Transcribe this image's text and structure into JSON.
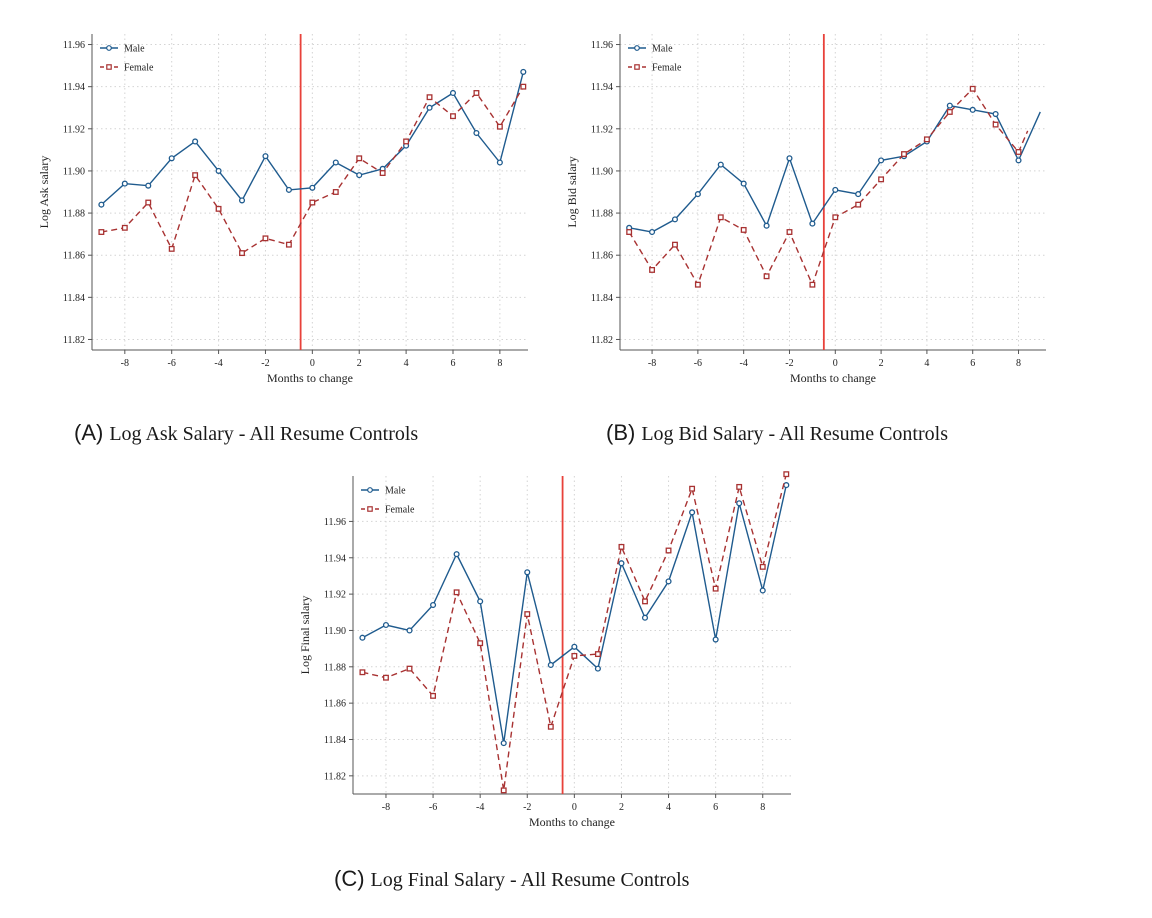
{
  "colors": {
    "male": "#1f5b8e",
    "female": "#a83232",
    "event": "#e8413a",
    "grid": "#d4d4d4",
    "axis": "#555555"
  },
  "chart_data": [
    {
      "type": "line",
      "id": "A",
      "title": "Log Ask Salary - All Resume Controls",
      "panel_label": "(A)",
      "xlabel": "Months to change",
      "ylabel": "Log Ask salary",
      "xlim": [
        -9.4,
        9.2
      ],
      "ylim": [
        11.815,
        11.965
      ],
      "xticks": [
        -8,
        -6,
        -4,
        -2,
        0,
        2,
        4,
        6,
        8
      ],
      "xtick_labels": [
        "-8",
        "-6",
        "-4",
        "-2",
        "0",
        "2",
        "4",
        "6",
        "8"
      ],
      "yticks": [
        11.82,
        11.84,
        11.86,
        11.88,
        11.9,
        11.92,
        11.94,
        11.96
      ],
      "ytick_labels": [
        "11.82",
        "11.84",
        "11.86",
        "11.88",
        "11.90",
        "11.92",
        "11.94",
        "11.96"
      ],
      "event_line_x": -0.5,
      "legend": [
        "Male",
        "Female"
      ],
      "legend_position": "top-left",
      "series": [
        {
          "name": "Male",
          "style": "solid",
          "marker": "circle",
          "x": [
            -9,
            -8,
            -7,
            -6,
            -5,
            -4,
            -3,
            -2,
            -1,
            0,
            1,
            2,
            3,
            4,
            5,
            6,
            7,
            8,
            9
          ],
          "y": [
            11.884,
            11.894,
            11.893,
            11.906,
            11.914,
            11.9,
            11.886,
            11.907,
            11.891,
            11.892,
            11.904,
            11.898,
            11.901,
            11.912,
            11.93,
            11.937,
            11.918,
            11.904,
            11.947
          ]
        },
        {
          "name": "Female",
          "style": "dashed",
          "marker": "square",
          "x": [
            -9,
            -8,
            -7,
            -6,
            -5,
            -4,
            -3,
            -2,
            -1,
            0,
            1,
            2,
            3,
            4,
            5,
            6,
            7,
            8,
            9
          ],
          "y": [
            11.871,
            11.873,
            11.885,
            11.863,
            11.898,
            11.882,
            11.861,
            11.868,
            11.865,
            11.885,
            11.89,
            11.906,
            11.899,
            11.914,
            11.935,
            11.926,
            11.937,
            11.921,
            11.94
          ]
        }
      ]
    },
    {
      "type": "line",
      "id": "B",
      "title": "Log Bid Salary - All Resume Controls",
      "panel_label": "(B)",
      "xlabel": "Months to change",
      "ylabel": "Log Bid salary",
      "xlim": [
        -9.4,
        9.2
      ],
      "ylim": [
        11.815,
        11.965
      ],
      "xticks": [
        -8,
        -6,
        -4,
        -2,
        0,
        2,
        4,
        6,
        8
      ],
      "xtick_labels": [
        "-8",
        "-6",
        "-4",
        "-2",
        "0",
        "2",
        "4",
        "6",
        "8"
      ],
      "yticks": [
        11.82,
        11.84,
        11.86,
        11.88,
        11.9,
        11.92,
        11.94,
        11.96
      ],
      "ytick_labels": [
        "11.82",
        "11.84",
        "11.86",
        "11.88",
        "11.90",
        "11.92",
        "11.94",
        "11.96"
      ],
      "event_line_x": -0.5,
      "legend": [
        "Male",
        "Female"
      ],
      "legend_position": "top-left",
      "series": [
        {
          "name": "Male",
          "style": "solid",
          "marker": "circle",
          "x": [
            -9,
            -8,
            -7,
            -6,
            -5,
            -4,
            -3,
            -2,
            -1,
            0,
            1,
            2,
            3,
            4,
            5,
            6,
            7,
            8
          ],
          "y": [
            11.873,
            11.871,
            11.877,
            11.889,
            11.903,
            11.894,
            11.874,
            11.906,
            11.875,
            11.891,
            11.889,
            11.905,
            11.907,
            11.914,
            11.931,
            11.929,
            11.927,
            11.905
          ],
          "tail": [
            8.95,
            11.928
          ]
        },
        {
          "name": "Female",
          "style": "dashed",
          "marker": "square",
          "x": [
            -9,
            -8,
            -7,
            -6,
            -5,
            -4,
            -3,
            -2,
            -1,
            0,
            1,
            2,
            3,
            4,
            5,
            6,
            7,
            8
          ],
          "y": [
            11.871,
            11.853,
            11.865,
            11.846,
            11.878,
            11.872,
            11.85,
            11.871,
            11.846,
            11.878,
            11.884,
            11.896,
            11.908,
            11.915,
            11.928,
            11.939,
            11.922,
            11.909
          ],
          "tail": [
            8.4,
            11.919
          ]
        }
      ]
    },
    {
      "type": "line",
      "id": "C",
      "title": "Log Final Salary - All Resume Controls",
      "panel_label": "(C)",
      "xlabel": "Months to change",
      "ylabel": "Log Final salary",
      "xlim": [
        -9.4,
        9.2
      ],
      "ylim": [
        11.81,
        11.985
      ],
      "xticks": [
        -8,
        -6,
        -4,
        -2,
        0,
        2,
        4,
        6,
        8
      ],
      "xtick_labels": [
        "-8",
        "-6",
        "-4",
        "-2",
        "0",
        "2",
        "4",
        "6",
        "8"
      ],
      "yticks": [
        11.82,
        11.84,
        11.86,
        11.88,
        11.9,
        11.92,
        11.94,
        11.96
      ],
      "ytick_labels": [
        "11.82",
        "11.84",
        "11.86",
        "11.88",
        "11.90",
        "11.92",
        "11.94",
        "11.96"
      ],
      "event_line_x": -0.5,
      "legend": [
        "Male",
        "Female"
      ],
      "legend_position": "top-left",
      "series": [
        {
          "name": "Male",
          "style": "solid",
          "marker": "circle",
          "x": [
            -9,
            -8,
            -7,
            -6,
            -5,
            -4,
            -3,
            -2,
            -1,
            0,
            1,
            2,
            3,
            4,
            5,
            6,
            7,
            8,
            9
          ],
          "y": [
            11.896,
            11.903,
            11.9,
            11.914,
            11.942,
            11.916,
            11.838,
            11.932,
            11.881,
            11.891,
            11.879,
            11.937,
            11.907,
            11.927,
            11.965,
            11.895,
            11.97,
            11.922,
            11.98
          ]
        },
        {
          "name": "Female",
          "style": "dashed",
          "marker": "square",
          "x": [
            -9,
            -8,
            -7,
            -6,
            -5,
            -4,
            -3,
            -2,
            -1,
            0,
            1,
            2,
            3,
            4,
            5,
            6,
            7,
            8,
            9
          ],
          "y": [
            11.877,
            11.874,
            11.879,
            11.864,
            11.921,
            11.893,
            11.812,
            11.909,
            11.847,
            11.886,
            11.887,
            11.946,
            11.916,
            11.944,
            11.978,
            11.923,
            11.979,
            11.935,
            11.986
          ]
        }
      ]
    }
  ]
}
